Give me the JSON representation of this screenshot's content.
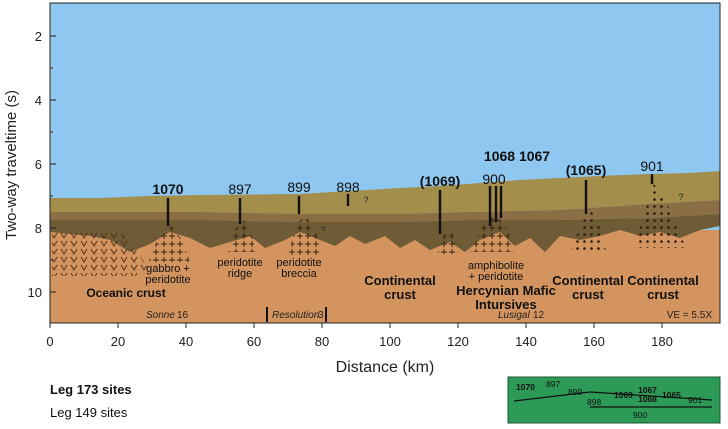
{
  "axes": {
    "ylabel": "Two-way traveltime (s)",
    "xlabel": "Distance (km)",
    "yticks": [
      "2",
      "4",
      "6",
      "8",
      "10"
    ],
    "xticks": [
      "0",
      "20",
      "40",
      "60",
      "80",
      "100",
      "120",
      "140",
      "160",
      "180"
    ]
  },
  "sites": {
    "s1070": "1070",
    "s897": "897",
    "s899": "899",
    "s898": "898",
    "s1069": "(1069)",
    "s900": "900",
    "s1068_1067": "1068 1067",
    "s1065": "(1065)",
    "s901": "901"
  },
  "labels": {
    "gabbro_1": "gabbro +",
    "gabbro_2": "peridotite",
    "ridge_1": "peridotite",
    "ridge_2": "ridge",
    "breccia_1": "peridotite",
    "breccia_2": "breccia",
    "oceanic": "Oceanic crust",
    "cont1_1": "Continental",
    "cont1_2": "crust",
    "amph_1": "amphibolite",
    "amph_2": "+ peridotite",
    "herc_1": "Hercynian Mafic",
    "herc_2": "Intursives",
    "cont2_1": "Continental",
    "cont2_2": "crust",
    "cont3_1": "Continental",
    "cont3_2": "crust",
    "q": "?"
  },
  "lines": {
    "sonne_name": "Sonne",
    "sonne_num": "16",
    "res_name": "Resolution",
    "res_num": "3",
    "lus_name": "Lusigal",
    "lus_num": "12",
    "ve": "VE = 5.5X"
  },
  "legend": {
    "leg173": "Leg 173 sites",
    "leg149": "Leg 149 sites"
  },
  "inset": {
    "s1070": "1070",
    "s897": "897",
    "s899": "899",
    "s898": "898",
    "s1069": "1069",
    "s1067": "1067",
    "s1068": "1068",
    "s1065": "1065",
    "s901": "901",
    "s900": "900"
  },
  "colors": {
    "water": "#8ec8f0",
    "sediment_top": "#a38e4b",
    "sediment_mid": "#8c6e44",
    "sediment_dark": "#6f5b35",
    "basement": "#d3945f",
    "inset_bg": "#2d9a57"
  }
}
